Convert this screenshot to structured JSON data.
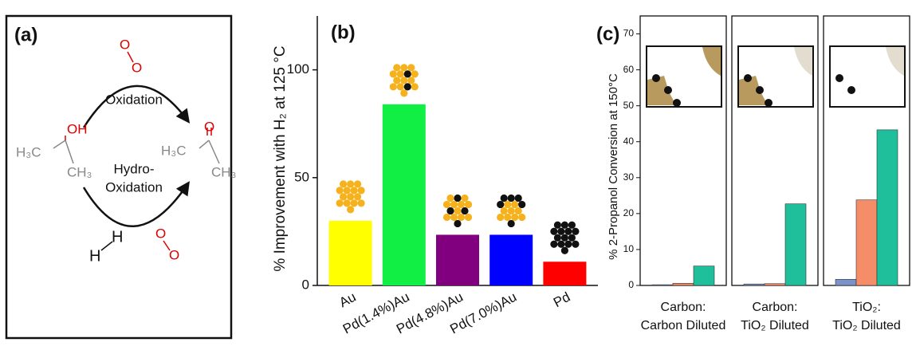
{
  "diagram": {
    "panel_label": "(a)",
    "steps": [
      [
        "Oxidation"
      ],
      [
        "Hydro-",
        "Oxidation"
      ]
    ],
    "reactant": {
      "oh": "OH",
      "left": "H₃C",
      "right": "CH₃"
    },
    "product": {
      "o": "O",
      "left": "H₃C",
      "right": "CH₃"
    },
    "oxygen_top": [
      "O",
      "O"
    ],
    "oxygen_bottom": [
      "O",
      "O"
    ],
    "hydrogen": [
      "H",
      "H"
    ]
  },
  "chart_data": [
    {
      "type": "bar",
      "panel_label": "(b)",
      "y_label": "% Improvement with H₂ at 125 °C",
      "categories": [
        "Au",
        "Pd(1.4%)Au",
        "Pd(4.8%)Au",
        "Pd(7.0%)Au",
        "Pd"
      ],
      "values": [
        30,
        84,
        23.5,
        23.5,
        11
      ],
      "colors": [
        "#ffff00",
        "#11ee44",
        "#800080",
        "#0000ff",
        "#ff0000"
      ],
      "ylim": [
        0,
        125
      ],
      "yticks": [
        0,
        50,
        100
      ]
    },
    {
      "type": "faceted_bar",
      "panel_label": "(c)",
      "y_label": "% 2-Propanol Conversion at 150°C",
      "categories": [
        [
          "Carbon:",
          "Carbon Diluted"
        ],
        [
          "Carbon:",
          "TiO₂ Diluted"
        ],
        [
          "TiO₂:",
          "TiO₂ Diluted"
        ]
      ],
      "series": [
        {
          "color": "#7b93c8",
          "values": [
            0.2,
            0.4,
            1.7
          ]
        },
        {
          "color": "#f58e68",
          "values": [
            0.6,
            0.5,
            23.8
          ]
        },
        {
          "color": "#1fbf9c",
          "values": [
            5.4,
            22.7,
            43.3
          ]
        }
      ],
      "ylim": [
        0,
        75
      ],
      "yticks": [
        0,
        10,
        20,
        30,
        40,
        50,
        60,
        70
      ]
    }
  ]
}
